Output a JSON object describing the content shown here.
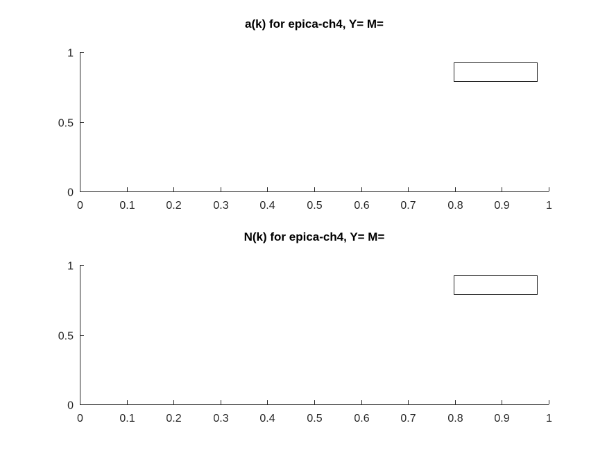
{
  "chart_data": [
    {
      "type": "line",
      "title": "a(k) for epica-ch4, Y= M=",
      "xlabel": "",
      "ylabel": "",
      "xlim": [
        0,
        1
      ],
      "ylim": [
        0,
        1
      ],
      "xticks": [
        0,
        0.1,
        0.2,
        0.3,
        0.4,
        0.5,
        0.6,
        0.7,
        0.8,
        0.9,
        1
      ],
      "xtick_labels": [
        "0",
        "0.1",
        "0.2",
        "0.3",
        "0.4",
        "0.5",
        "0.6",
        "0.7",
        "0.8",
        "0.9",
        "1"
      ],
      "yticks": [
        0,
        0.5,
        1
      ],
      "ytick_labels": [
        "0",
        "0.5",
        "1"
      ],
      "series": [],
      "legend": {
        "placement": "top-right",
        "entries": []
      },
      "grid": false
    },
    {
      "type": "line",
      "title": "N(k) for epica-ch4, Y= M=",
      "xlabel": "",
      "ylabel": "",
      "xlim": [
        0,
        1
      ],
      "ylim": [
        0,
        1
      ],
      "xticks": [
        0,
        0.1,
        0.2,
        0.3,
        0.4,
        0.5,
        0.6,
        0.7,
        0.8,
        0.9,
        1
      ],
      "xtick_labels": [
        "0",
        "0.1",
        "0.2",
        "0.3",
        "0.4",
        "0.5",
        "0.6",
        "0.7",
        "0.8",
        "0.9",
        "1"
      ],
      "yticks": [
        0,
        0.5,
        1
      ],
      "ytick_labels": [
        "0",
        "0.5",
        "1"
      ],
      "series": [],
      "legend": {
        "placement": "top-right",
        "entries": []
      },
      "grid": false
    }
  ]
}
